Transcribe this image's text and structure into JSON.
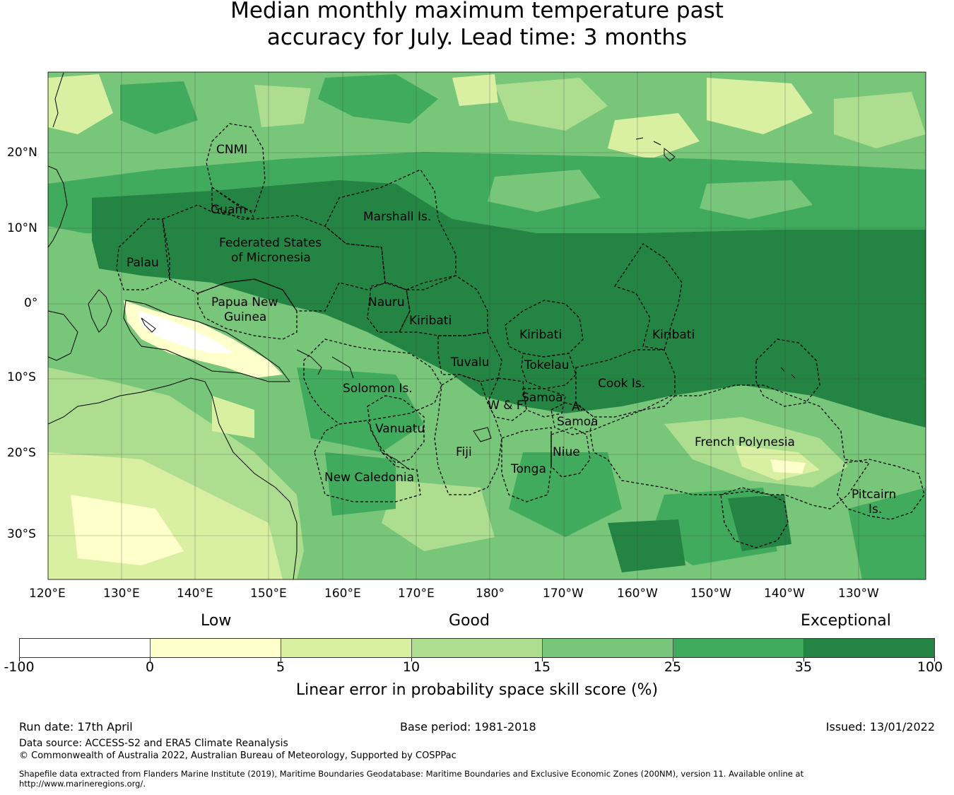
{
  "title": {
    "line1": "Median monthly maximum temperature past",
    "line2": "accuracy for July. Lead time: 3 months"
  },
  "map": {
    "lon_labels": [
      "120°E",
      "130°E",
      "140°E",
      "150°E",
      "160°E",
      "170°E",
      "180°",
      "170°W",
      "160°W",
      "150°W",
      "140°W",
      "130°W"
    ],
    "lat_labels": [
      "20°N",
      "10°N",
      "0°",
      "10°S",
      "20°S",
      "30°S"
    ],
    "regions": [
      {
        "id": "cnmi",
        "lines": [
          "CNMI"
        ]
      },
      {
        "id": "guam",
        "lines": [
          "Guam"
        ]
      },
      {
        "id": "marshall",
        "lines": [
          "Marshall Is."
        ]
      },
      {
        "id": "palau",
        "lines": [
          "Palau"
        ]
      },
      {
        "id": "fsm",
        "lines": [
          "Federated States",
          "of Micronesia"
        ]
      },
      {
        "id": "png",
        "lines": [
          "Papua New",
          "Guinea"
        ]
      },
      {
        "id": "nauru",
        "lines": [
          "Nauru"
        ]
      },
      {
        "id": "kiribati1",
        "lines": [
          "Kiribati"
        ]
      },
      {
        "id": "kiribati2",
        "lines": [
          "Kiribati"
        ]
      },
      {
        "id": "kiribati3",
        "lines": [
          "Kiribati"
        ]
      },
      {
        "id": "tuvalu",
        "lines": [
          "Tuvalu"
        ]
      },
      {
        "id": "tokelau",
        "lines": [
          "Tokelau"
        ]
      },
      {
        "id": "solomon",
        "lines": [
          "Solomon Is."
        ]
      },
      {
        "id": "cook",
        "lines": [
          "Cook Is."
        ]
      },
      {
        "id": "samoa",
        "lines": [
          "Samoa"
        ]
      },
      {
        "id": "wf",
        "lines": [
          "W & F"
        ]
      },
      {
        "id": "asamoa_a",
        "lines": [
          "A."
        ]
      },
      {
        "id": "asamoa",
        "lines": [
          "Samoa"
        ]
      },
      {
        "id": "vanuatu",
        "lines": [
          "Vanuatu"
        ]
      },
      {
        "id": "fiji",
        "lines": [
          "Fiji"
        ]
      },
      {
        "id": "niue",
        "lines": [
          "Niue"
        ]
      },
      {
        "id": "tonga",
        "lines": [
          "Tonga"
        ]
      },
      {
        "id": "frpoly",
        "lines": [
          "French Polynesia"
        ]
      },
      {
        "id": "newcal",
        "lines": [
          "New Caledonia"
        ]
      },
      {
        "id": "pitcairn",
        "lines": [
          "Pitcairn",
          "Is."
        ]
      }
    ]
  },
  "colorbar": {
    "words": {
      "low": "Low",
      "good": "Good",
      "exceptional": "Exceptional"
    },
    "colors": [
      "#ffffff",
      "#ffffcc",
      "#d9f0a3",
      "#addd8e",
      "#78c679",
      "#41ab5d",
      "#238443"
    ],
    "ticks": [
      "-100",
      "0",
      "5",
      "10",
      "15",
      "25",
      "35",
      "100"
    ],
    "label": "Linear error in probability space skill score (%)"
  },
  "footer": {
    "run_date": "Run date: 17th April",
    "base_period": "Base period: 1981-2018",
    "issued": "Issued: 13/01/2022",
    "data_source": "Data source: ACCESS-S2 and ERA5 Climate Reanalysis",
    "copyright": "© Commonwealth of Australia 2022, Australian Bureau of Meteorology, Supported by COSPPac",
    "shapefile_1": "Shapefile data extracted from Flanders Marine Institute (2019), Maritime Boundaries Geodatabase: Maritime Boundaries and Exclusive Economic Zones (200NM), version 11. Available online at",
    "shapefile_2": "http://www.marineregions.org/."
  }
}
